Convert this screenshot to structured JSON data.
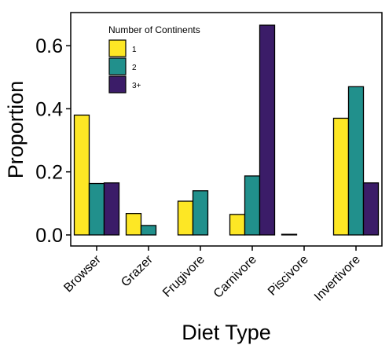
{
  "chart_data": {
    "type": "bar",
    "xlabel": "Diet Type",
    "ylabel": "Proportion",
    "ylim": [
      -0.035,
      0.705
    ],
    "yticks": [
      0.0,
      0.2,
      0.4,
      0.6
    ],
    "ytick_labels": [
      "0.0",
      "0.2",
      "0.4",
      "0.6"
    ],
    "grid": false,
    "legend_position": "top-left",
    "categories": [
      "Browser",
      "Grazer",
      "Frugivore",
      "Carnivore",
      "Piscivore",
      "Invertivore"
    ],
    "legend_title": "Number of Continents",
    "series": [
      {
        "name": "1",
        "color": "#FDE725",
        "values": [
          0.38,
          0.068,
          0.107,
          0.065,
          0.002,
          0.37
        ]
      },
      {
        "name": "2",
        "color": "#21908C",
        "values": [
          0.163,
          0.03,
          0.14,
          0.187,
          0.0,
          0.47
        ]
      },
      {
        "name": "3+",
        "color": "#3B1C68",
        "values": [
          0.165,
          0.0,
          0.0,
          0.665,
          0.0,
          0.165
        ]
      }
    ]
  }
}
